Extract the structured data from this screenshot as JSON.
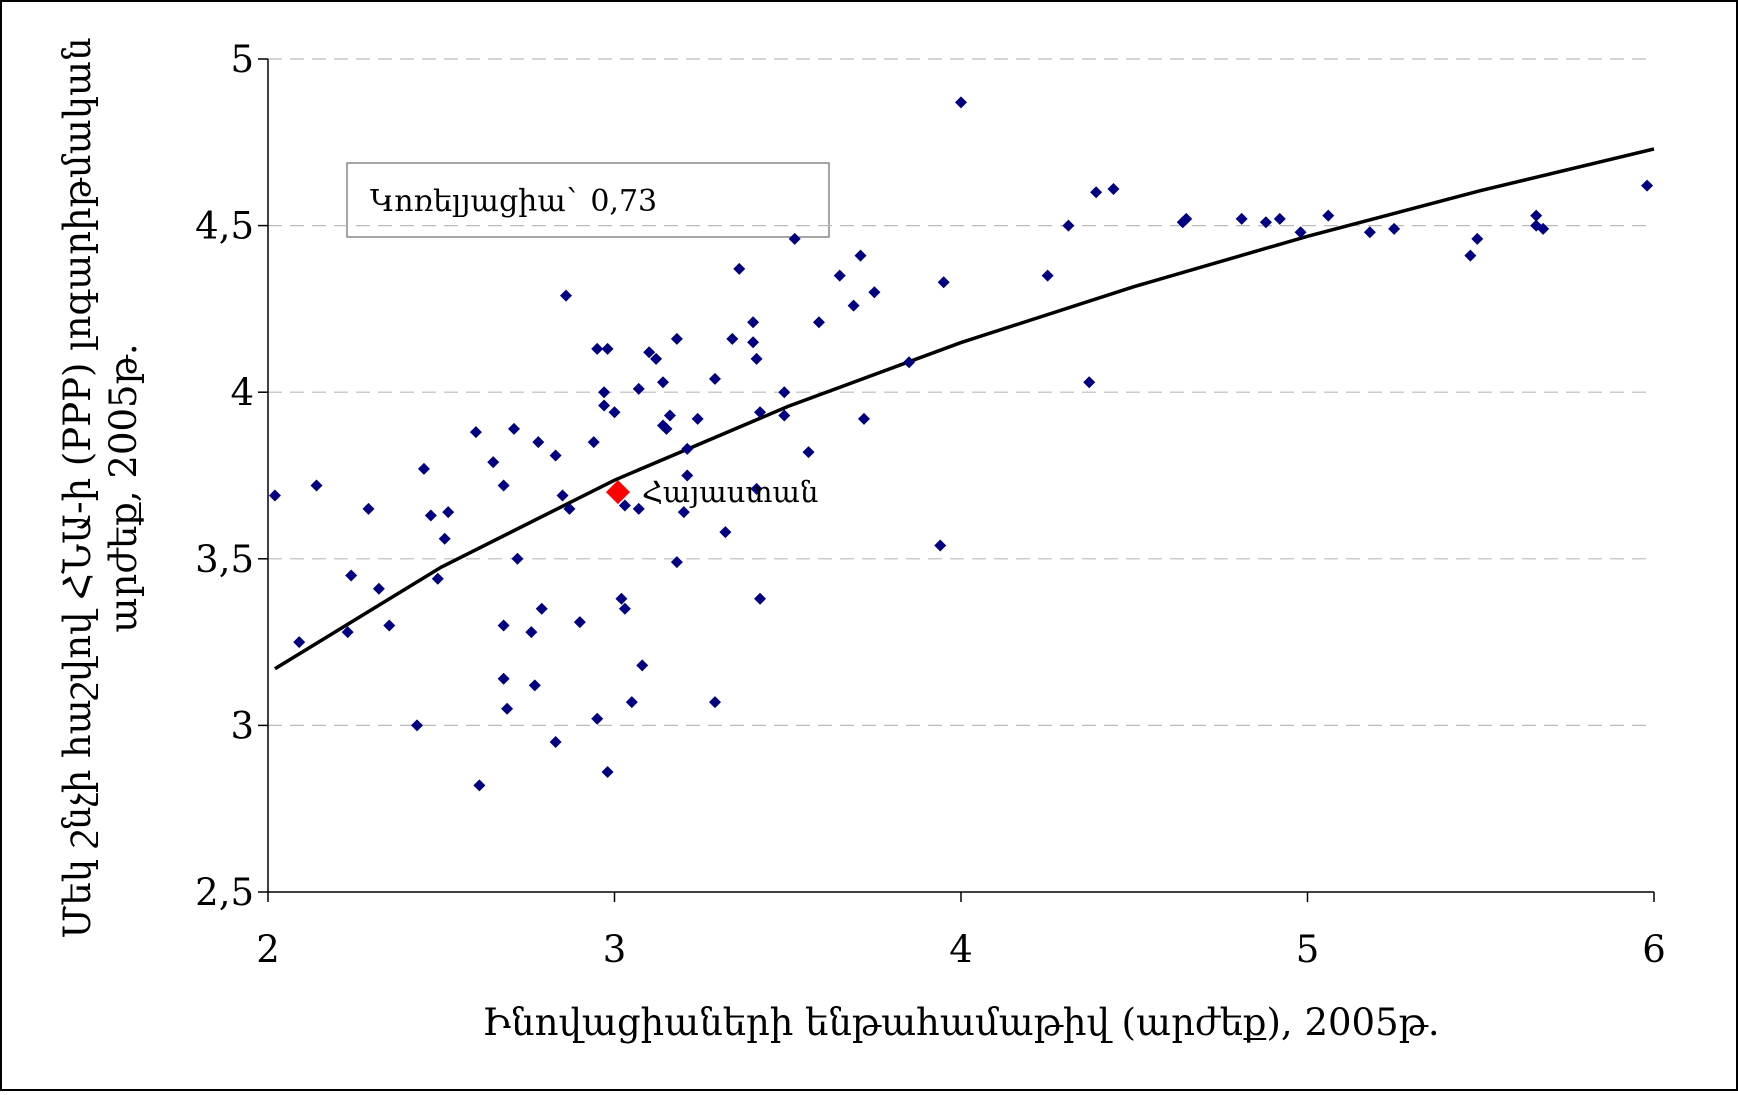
{
  "chart_data": {
    "type": "scatter",
    "x_label": "Ինովացիաների ենթահամաթիվ (արժեք), 2005թ.",
    "y_label": [
      "Մեկ շնչի հաշվով ՀՆԱ-ի (PPP) լոգարիթմական",
      "արժեք, 2005թ."
    ],
    "annotation": "Կոռելյացիա` 0,73",
    "xlim": [
      2,
      6
    ],
    "xticks": [
      2,
      3,
      4,
      5,
      6
    ],
    "ylim": [
      2.5,
      5
    ],
    "yticks": [
      {
        "value": 2.5,
        "label": "2,5"
      },
      3,
      {
        "value": 3.5,
        "label": "3,5"
      },
      4,
      {
        "value": 4.5,
        "label": "4,5"
      },
      5
    ],
    "grid": true,
    "series": [
      {
        "color": "#000080",
        "x": [
          2.02,
          2.09,
          2.14,
          2.23,
          2.24,
          2.29,
          2.32,
          2.35,
          2.43,
          2.45,
          2.47,
          2.49,
          2.51,
          2.52,
          2.6,
          2.61,
          2.65,
          2.68,
          2.68,
          2.68,
          2.69,
          2.71,
          2.72,
          2.76,
          2.77,
          2.78,
          2.79,
          2.83,
          2.83,
          2.85,
          2.86,
          2.87,
          2.9,
          2.94,
          2.95,
          2.95,
          2.97,
          2.97,
          2.98,
          2.98,
          3.0,
          3.02,
          3.03,
          3.03,
          3.05,
          3.07,
          3.07,
          3.08,
          3.1,
          3.12,
          3.14,
          3.14,
          3.15,
          3.16,
          3.18,
          3.18,
          3.2,
          3.21,
          3.21,
          3.24,
          3.29,
          3.29,
          3.32,
          3.34,
          3.36,
          3.4,
          3.4,
          3.41,
          3.41,
          3.42,
          3.42,
          3.49,
          3.49,
          3.52,
          3.56,
          3.59,
          3.65,
          3.69,
          3.71,
          3.72,
          3.75,
          3.85,
          3.94,
          3.95,
          4.0,
          4.25,
          4.31,
          4.37,
          4.39,
          4.44,
          4.64,
          4.65,
          4.81,
          4.88,
          4.92,
          4.98,
          5.06,
          5.18,
          5.25,
          5.47,
          5.49,
          5.66,
          5.66,
          5.68,
          5.98
        ],
        "y": [
          3.69,
          3.25,
          3.72,
          3.28,
          3.45,
          3.65,
          3.41,
          3.3,
          3.0,
          3.77,
          3.63,
          3.44,
          3.56,
          3.64,
          3.88,
          2.82,
          3.79,
          3.72,
          3.3,
          3.14,
          3.05,
          3.89,
          3.5,
          3.28,
          3.12,
          3.85,
          3.35,
          3.81,
          2.95,
          3.69,
          4.29,
          3.65,
          3.31,
          3.85,
          4.13,
          3.02,
          4.0,
          3.96,
          4.13,
          2.86,
          3.94,
          3.38,
          3.35,
          3.66,
          3.07,
          4.01,
          3.65,
          3.18,
          4.12,
          4.1,
          4.03,
          3.9,
          3.89,
          3.93,
          4.16,
          3.49,
          3.64,
          3.83,
          3.75,
          3.92,
          4.04,
          3.07,
          3.58,
          4.16,
          4.37,
          4.21,
          4.15,
          4.1,
          3.71,
          3.94,
          3.38,
          4.0,
          3.93,
          4.46,
          3.82,
          4.21,
          4.35,
          4.26,
          4.41,
          3.92,
          4.3,
          4.09,
          3.54,
          4.33,
          4.87,
          4.35,
          4.5,
          4.03,
          4.6,
          4.61,
          4.51,
          4.52,
          4.52,
          4.51,
          4.52,
          4.48,
          4.53,
          4.48,
          4.49,
          4.41,
          4.46,
          4.53,
          4.5,
          4.49,
          4.62
        ]
      },
      {
        "name": "Հայաստան",
        "color": "#ff0000",
        "x": [
          3.01
        ],
        "y": [
          3.7
        ]
      }
    ],
    "trendline": {
      "color": "#000000",
      "x": [
        2.02,
        2.5,
        3,
        3.5,
        4,
        4.5,
        5,
        5.5,
        6
      ],
      "y": [
        3.17,
        3.475,
        3.736,
        3.957,
        4.149,
        4.317,
        4.468,
        4.605,
        4.73
      ]
    }
  }
}
